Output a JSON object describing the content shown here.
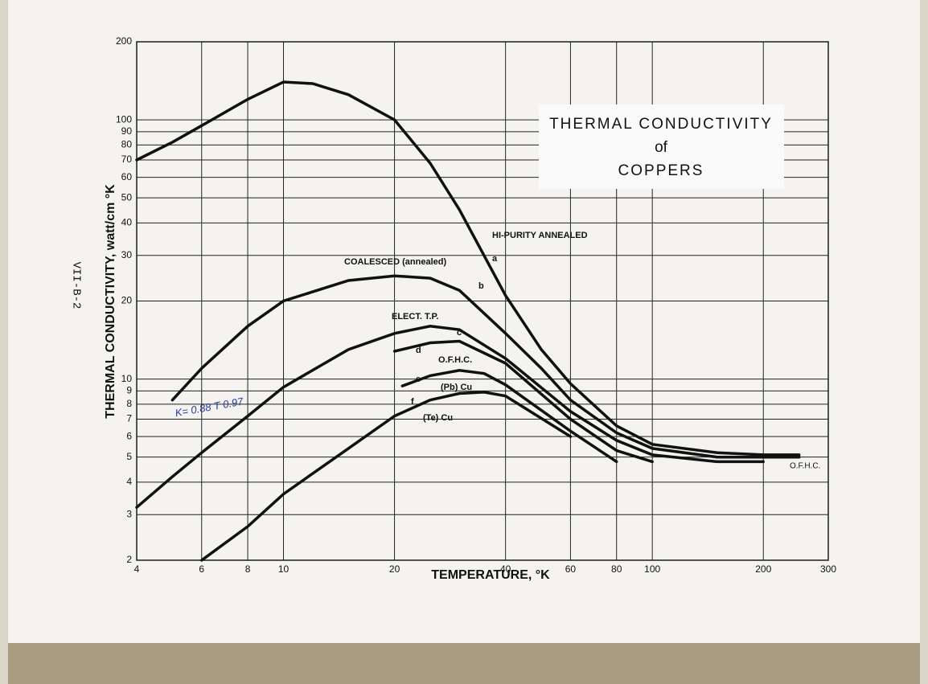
{
  "chart_data": {
    "type": "line",
    "title": [
      "THERMAL CONDUCTIVITY",
      "of",
      "COPPERS"
    ],
    "x_label": "TEMPERATURE, °K",
    "y_label": "THERMAL CONDUCTIVITY, watt/cm °K",
    "page_label": "VII-B-2",
    "annotations": [
      "O.F.H.C.",
      "K= 0.88 T 0.97"
    ],
    "xscale": "log",
    "yscale": "log",
    "grid": true,
    "xlim": [
      4,
      300
    ],
    "ylim": [
      2,
      200
    ],
    "xticks": [
      4,
      6,
      8,
      10,
      20,
      40,
      60,
      80,
      100,
      200,
      300
    ],
    "yticks": [
      2,
      3,
      4,
      5,
      6,
      7,
      8,
      9,
      10,
      20,
      30,
      40,
      50,
      60,
      70,
      80,
      90,
      100,
      200
    ],
    "series": [
      {
        "name": "HI-PURITY ANNEALED",
        "label": "a",
        "color": "#111111",
        "x": [
          4,
          5,
          6,
          8,
          10,
          12,
          15,
          20,
          25,
          30,
          40,
          50,
          60,
          80,
          100,
          150,
          200,
          250
        ],
        "values": [
          70,
          82,
          95,
          120,
          140,
          138,
          125,
          100,
          68,
          45,
          21,
          13,
          9.6,
          6.6,
          5.6,
          5.2,
          5.1,
          5.1
        ]
      },
      {
        "name": "COALESCED (annealed)",
        "label": "b",
        "color": "#111111",
        "x": [
          5,
          6,
          8,
          10,
          15,
          20,
          25,
          30,
          40,
          50,
          60,
          80,
          100,
          150,
          200,
          250
        ],
        "values": [
          8.3,
          11,
          16,
          20,
          24,
          25,
          24.5,
          22,
          15,
          11,
          8.3,
          6.2,
          5.4,
          5.0,
          5.0,
          5.0
        ]
      },
      {
        "name": "ELECT. T.P.",
        "label": "c",
        "color": "#111111",
        "x": [
          4,
          5,
          6,
          8,
          10,
          15,
          20,
          25,
          30,
          40,
          60,
          80,
          100,
          150,
          200
        ],
        "values": [
          3.2,
          4.2,
          5.2,
          7.2,
          9.3,
          13,
          15,
          16,
          15.5,
          12,
          7.5,
          5.8,
          5.1,
          4.8,
          4.8
        ]
      },
      {
        "name": "O.F.H.C.",
        "label": "d",
        "color": "#111111",
        "x": [
          20,
          25,
          30,
          40,
          60,
          80,
          100
        ],
        "values": [
          12.8,
          13.8,
          14,
          11.5,
          7,
          5.3,
          4.8
        ]
      },
      {
        "name": "(Pb) Cu",
        "label": "e",
        "color": "#111111",
        "x": [
          21,
          25,
          30,
          35,
          40,
          60,
          80
        ],
        "values": [
          9.4,
          10.3,
          10.8,
          10.5,
          9.5,
          6.3,
          4.8
        ]
      },
      {
        "name": "(Te) Cu",
        "label": "f",
        "color": "#111111",
        "x": [
          6,
          8,
          10,
          15,
          20,
          25,
          30,
          35,
          40,
          60
        ],
        "values": [
          2,
          2.7,
          3.6,
          5.4,
          7.2,
          8.3,
          8.8,
          8.9,
          8.6,
          6
        ]
      }
    ]
  }
}
